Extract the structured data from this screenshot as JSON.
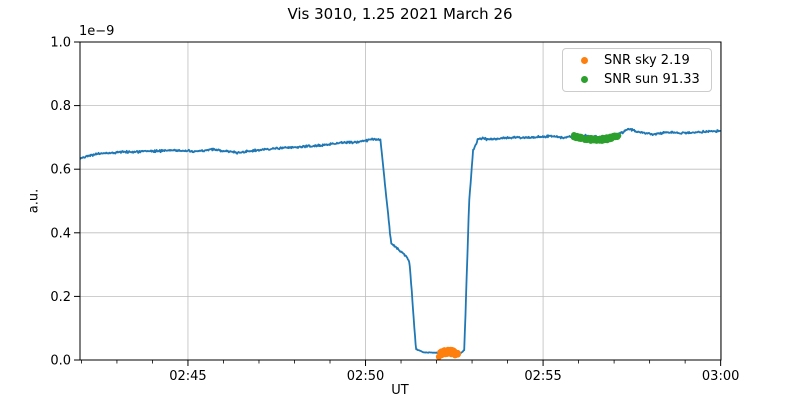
{
  "title": "Vis 3010, 1.25 2021 March 26",
  "colors": {
    "line": "#1f77b4",
    "sky_marker": "#ff7f0e",
    "sun_marker": "#2ca02c",
    "grid": "#bdbdbd",
    "spine": "#000000",
    "text": "#000000",
    "legend_border": "#cccccc"
  },
  "chart_data": {
    "type": "line",
    "title": "Vis 3010, 1.25 2021 March 26",
    "xlabel": "UT",
    "ylabel": "a.u.",
    "y_offset_text": "1e−9",
    "x_encoding": "minutes_after_02:40_UT",
    "xlim": [
      1.96,
      20.01
    ],
    "ylim": [
      0.0,
      1.0
    ],
    "grid": true,
    "x_major_ticks": [
      {
        "m": 5,
        "label": "02:45"
      },
      {
        "m": 10,
        "label": "02:50"
      },
      {
        "m": 15,
        "label": "02:55"
      },
      {
        "m": 20,
        "label": "03:00"
      }
    ],
    "x_minor_step": 1,
    "y_ticks": [
      {
        "v": 0.0,
        "label": "0.0"
      },
      {
        "v": 0.2,
        "label": "0.2"
      },
      {
        "v": 0.4,
        "label": "0.4"
      },
      {
        "v": 0.6,
        "label": "0.6"
      },
      {
        "v": 0.8,
        "label": "0.8"
      },
      {
        "v": 1.0,
        "label": "1.0"
      }
    ],
    "line_series": {
      "name": "signal",
      "units": "1e-9 a.u.",
      "sample_step": 0.018,
      "noise_amp_high": 0.005,
      "noise_amp_low": 0.0018,
      "seed": 42,
      "keypoints": [
        [
          1.96,
          0.633
        ],
        [
          2.15,
          0.642
        ],
        [
          2.6,
          0.65
        ],
        [
          3.2,
          0.654
        ],
        [
          3.9,
          0.656
        ],
        [
          4.6,
          0.66
        ],
        [
          5.15,
          0.655
        ],
        [
          5.7,
          0.662
        ],
        [
          6.4,
          0.652
        ],
        [
          7.0,
          0.66
        ],
        [
          7.45,
          0.665
        ],
        [
          8.0,
          0.669
        ],
        [
          8.6,
          0.673
        ],
        [
          9.2,
          0.682
        ],
        [
          9.85,
          0.687
        ],
        [
          10.25,
          0.695
        ],
        [
          10.42,
          0.692
        ],
        [
          10.72,
          0.368
        ],
        [
          10.95,
          0.345
        ],
        [
          11.18,
          0.322
        ],
        [
          11.24,
          0.308
        ],
        [
          11.42,
          0.034
        ],
        [
          11.65,
          0.024
        ],
        [
          12.2,
          0.022
        ],
        [
          12.68,
          0.021
        ],
        [
          12.78,
          0.032
        ],
        [
          12.92,
          0.5
        ],
        [
          13.03,
          0.66
        ],
        [
          13.18,
          0.697
        ],
        [
          13.6,
          0.694
        ],
        [
          14.15,
          0.701
        ],
        [
          14.6,
          0.698
        ],
        [
          15.15,
          0.704
        ],
        [
          15.6,
          0.7
        ],
        [
          16.0,
          0.706
        ],
        [
          16.7,
          0.7
        ],
        [
          17.25,
          0.716
        ],
        [
          17.4,
          0.728
        ],
        [
          17.7,
          0.716
        ],
        [
          18.1,
          0.71
        ],
        [
          18.55,
          0.716
        ],
        [
          18.95,
          0.713
        ],
        [
          19.5,
          0.717
        ],
        [
          19.95,
          0.721
        ],
        [
          20.01,
          0.722
        ]
      ]
    },
    "scatter_series": [
      {
        "name": "SNR sky 2.19",
        "snr": 2.19,
        "color_key": "sky_marker",
        "m_range": [
          12.06,
          12.62
        ],
        "v_base": 0.016,
        "v_bump": 0.01,
        "v_jitter": 0.007,
        "count": 65,
        "radius": 3,
        "seed": 7
      },
      {
        "name": "SNR sun 91.33",
        "snr": 91.33,
        "color_key": "sun_marker",
        "m_range": [
          15.86,
          17.12
        ],
        "v_base": 0.704,
        "v_bump": -0.011,
        "v_jitter": 0.005,
        "count": 95,
        "radius": 3,
        "seed": 11
      }
    ],
    "legend": {
      "position": "upper right",
      "entries": [
        {
          "label": "SNR sky 2.19",
          "color_key": "sky_marker"
        },
        {
          "label": "SNR sun 91.33",
          "color_key": "sun_marker"
        }
      ]
    }
  }
}
